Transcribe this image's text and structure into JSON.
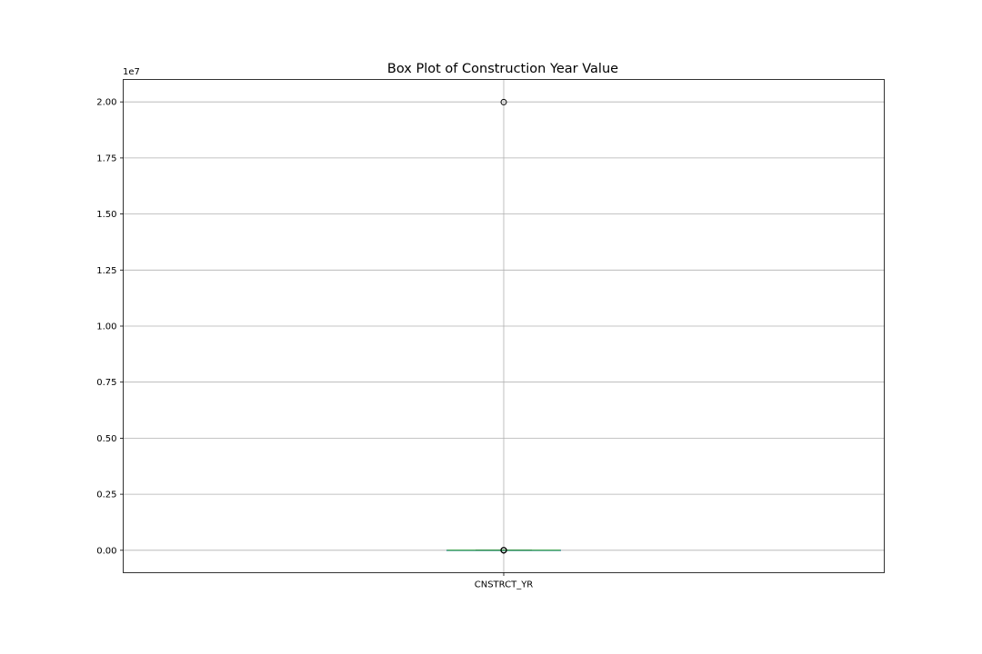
{
  "chart_data": {
    "type": "box",
    "title": "Box Plot of Construction Year Value",
    "xlabel": "",
    "ylabel": "",
    "categories": [
      "CNSTRCT_YR"
    ],
    "y_offset_label": "1e7",
    "y_scale_factor": 10000000,
    "ylim": [
      -1000000,
      21000000
    ],
    "yticks": [
      0,
      2500000,
      5000000,
      7500000,
      10000000,
      12500000,
      15000000,
      17500000,
      20000000
    ],
    "ytick_labels": [
      "0.00",
      "0.25",
      "0.50",
      "0.75",
      "1.00",
      "1.25",
      "1.50",
      "1.75",
      "2.00"
    ],
    "grid": true,
    "boxes": [
      {
        "category": "CNSTRCT_YR",
        "whisker_low": 1900,
        "q1": 1960,
        "median": 1980,
        "q3": 1995,
        "whisker_high": 2015,
        "outliers_low": [
          0,
          0,
          0,
          1700,
          1800
        ],
        "outliers_high": [
          19990000
        ]
      }
    ],
    "colors": {
      "median": "#2ca02c",
      "box": "#1f77b4",
      "outlier_edge": "#000000"
    }
  }
}
